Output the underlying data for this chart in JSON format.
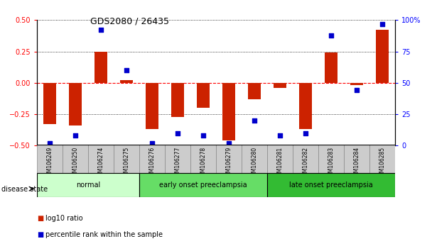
{
  "title": "GDS2080 / 26435",
  "samples": [
    "GSM106249",
    "GSM106250",
    "GSM106274",
    "GSM106275",
    "GSM106276",
    "GSM106277",
    "GSM106278",
    "GSM106279",
    "GSM106280",
    "GSM106281",
    "GSM106282",
    "GSM106283",
    "GSM106284",
    "GSM106285"
  ],
  "log10_ratio": [
    -0.33,
    -0.34,
    0.25,
    0.02,
    -0.37,
    -0.27,
    -0.2,
    -0.46,
    -0.13,
    -0.04,
    -0.37,
    0.24,
    -0.02,
    0.42
  ],
  "percentile_rank": [
    2,
    8,
    92,
    60,
    2,
    10,
    8,
    2,
    20,
    8,
    10,
    88,
    44,
    97
  ],
  "ylim_left": [
    -0.5,
    0.5
  ],
  "ylim_right": [
    0,
    100
  ],
  "yticks_left": [
    -0.5,
    -0.25,
    0,
    0.25,
    0.5
  ],
  "yticks_right": [
    0,
    25,
    50,
    75,
    100
  ],
  "groups": [
    {
      "label": "normal",
      "start": 0,
      "end": 3,
      "color": "#ccffcc"
    },
    {
      "label": "early onset preeclampsia",
      "start": 4,
      "end": 8,
      "color": "#66dd66"
    },
    {
      "label": "late onset preeclampsia",
      "start": 9,
      "end": 13,
      "color": "#33bb33"
    }
  ],
  "bar_color": "#cc2200",
  "dot_color": "#0000cc",
  "background_color": "#ffffff",
  "legend_items": [
    {
      "label": "log10 ratio",
      "color": "#cc2200"
    },
    {
      "label": "percentile rank within the sample",
      "color": "#0000cc"
    }
  ],
  "disease_state_label": "disease state"
}
